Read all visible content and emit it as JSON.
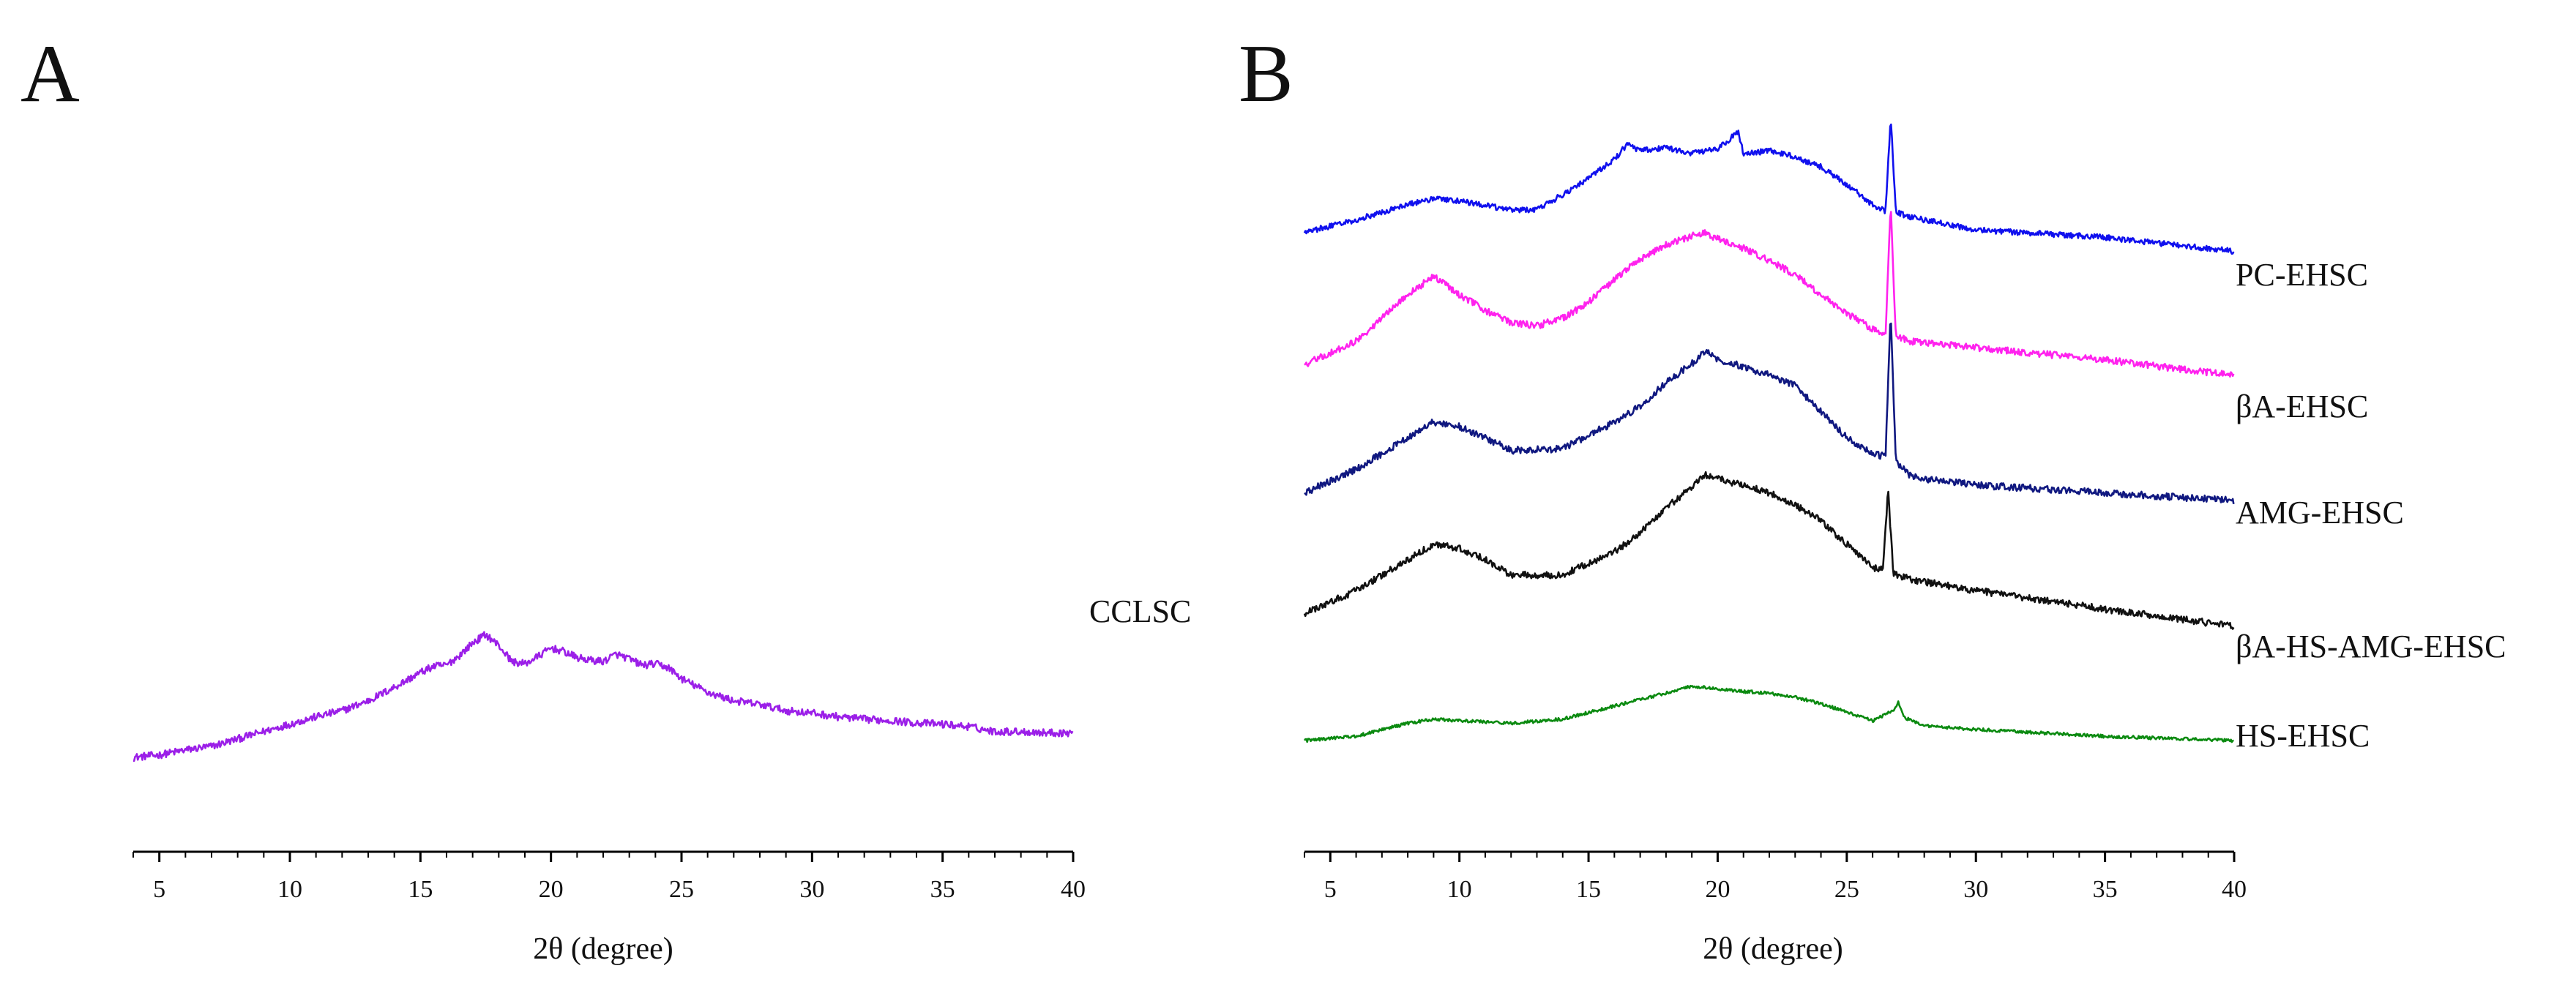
{
  "chart_data": [
    {
      "panel": "A",
      "type": "line",
      "title": "",
      "xlabel": "2θ (degree)",
      "ylabel": "",
      "xlim": [
        4,
        40
      ],
      "xticks": [
        5,
        10,
        15,
        20,
        25,
        30,
        35,
        40
      ],
      "grid": false,
      "yaxis": "hidden (arbitrary intensity)",
      "series": [
        {
          "name": "CCLSC",
          "color": "#9b1fe8",
          "x": [
            4,
            5,
            6,
            7,
            8,
            9,
            10,
            11,
            12,
            13,
            14,
            15,
            15.5,
            16,
            16.5,
            17,
            17.5,
            18,
            18.5,
            19,
            19.5,
            20,
            20.5,
            21,
            21.5,
            22,
            22.5,
            23,
            23.5,
            24,
            24.5,
            25,
            26,
            27,
            28,
            29,
            30,
            31,
            32,
            33,
            34,
            35,
            36,
            37,
            38,
            39,
            40
          ],
          "y": [
            0,
            0.02,
            0.06,
            0.09,
            0.15,
            0.21,
            0.27,
            0.33,
            0.38,
            0.46,
            0.57,
            0.69,
            0.74,
            0.75,
            0.83,
            0.93,
            1.0,
            0.91,
            0.78,
            0.76,
            0.82,
            0.89,
            0.86,
            0.81,
            0.79,
            0.78,
            0.84,
            0.8,
            0.75,
            0.76,
            0.73,
            0.64,
            0.53,
            0.46,
            0.43,
            0.38,
            0.36,
            0.33,
            0.31,
            0.3,
            0.28,
            0.27,
            0.25,
            0.21,
            0.21,
            0.2,
            0.2
          ],
          "noise": 0.03
        }
      ]
    },
    {
      "panel": "B",
      "type": "line",
      "title": "",
      "xlabel": "2θ (degree)",
      "ylabel": "",
      "xlim": [
        4,
        40
      ],
      "xticks": [
        5,
        10,
        15,
        20,
        25,
        30,
        35,
        40
      ],
      "grid": false,
      "yaxis": "hidden (stacked, arbitrary intensity)",
      "series": [
        {
          "name": "PC-EHSC",
          "color": "#1010ee",
          "x": [
            4,
            6,
            8,
            9,
            10,
            12,
            13,
            14,
            15,
            16,
            16.5,
            17,
            18,
            19,
            20,
            20.8,
            21,
            22,
            23,
            24,
            25,
            26,
            26.5,
            26.7,
            26.9,
            27.5,
            30,
            35,
            40
          ],
          "y": [
            0.2,
            0.3,
            0.42,
            0.47,
            0.45,
            0.38,
            0.38,
            0.5,
            0.63,
            0.78,
            0.9,
            0.85,
            0.87,
            0.83,
            0.86,
            1.0,
            0.82,
            0.85,
            0.8,
            0.72,
            0.58,
            0.42,
            0.37,
            1.12,
            0.36,
            0.32,
            0.22,
            0.16,
            0.05
          ],
          "noise": 0.022
        },
        {
          "name": "βA-EHSC",
          "color": "#ff22ee",
          "x": [
            4,
            6,
            8,
            9,
            10,
            11,
            12,
            13,
            14,
            15,
            16,
            17,
            18,
            19,
            19.5,
            20,
            21,
            22,
            23,
            24,
            25,
            26,
            26.5,
            26.7,
            26.9,
            27.5,
            30,
            35,
            40
          ],
          "y": [
            0.15,
            0.3,
            0.6,
            0.72,
            0.6,
            0.5,
            0.42,
            0.4,
            0.45,
            0.55,
            0.7,
            0.83,
            0.92,
            0.98,
            1.0,
            0.96,
            0.9,
            0.82,
            0.73,
            0.6,
            0.48,
            0.38,
            0.33,
            1.18,
            0.33,
            0.3,
            0.26,
            0.18,
            0.08
          ],
          "noise": 0.022
        },
        {
          "name": "AMG-EHSC",
          "color": "#101880",
          "x": [
            4,
            6,
            8,
            9,
            10,
            11,
            12,
            14,
            16,
            17,
            18,
            19,
            19.5,
            20,
            21,
            22,
            23,
            24,
            25,
            26,
            26.5,
            26.7,
            26.9,
            27.5,
            30,
            35,
            40
          ],
          "y": [
            0.1,
            0.25,
            0.45,
            0.55,
            0.52,
            0.45,
            0.37,
            0.38,
            0.55,
            0.65,
            0.8,
            0.92,
            1.0,
            0.95,
            0.9,
            0.85,
            0.78,
            0.62,
            0.45,
            0.35,
            0.33,
            1.25,
            0.3,
            0.2,
            0.15,
            0.1,
            0.05
          ],
          "noise": 0.022
        },
        {
          "name": "βA-HS-AMG-EHSC",
          "color": "#111111",
          "x": [
            4,
            6,
            8,
            9,
            10,
            11,
            12,
            14,
            16,
            17,
            18,
            19,
            19.5,
            20,
            21,
            22,
            23,
            24,
            25,
            26,
            26.4,
            26.6,
            26.8,
            27.5,
            30,
            35,
            40
          ],
          "y": [
            0.1,
            0.25,
            0.45,
            0.55,
            0.52,
            0.45,
            0.35,
            0.35,
            0.5,
            0.62,
            0.78,
            0.92,
            1.0,
            0.97,
            0.93,
            0.88,
            0.8,
            0.7,
            0.55,
            0.4,
            0.38,
            0.9,
            0.36,
            0.32,
            0.25,
            0.13,
            0.02
          ],
          "noise": 0.022
        },
        {
          "name": "HS-EHSC",
          "color": "#0b8a10",
          "x": [
            4,
            6,
            8,
            9,
            10,
            12,
            14,
            16,
            18,
            19,
            20,
            21,
            22,
            23,
            24,
            25,
            26,
            26.8,
            27,
            27.2,
            28,
            30,
            35,
            40
          ],
          "y": [
            0.05,
            0.1,
            0.25,
            0.3,
            0.28,
            0.25,
            0.3,
            0.45,
            0.6,
            0.68,
            0.65,
            0.62,
            0.6,
            0.55,
            0.48,
            0.38,
            0.28,
            0.4,
            0.5,
            0.32,
            0.22,
            0.18,
            0.1,
            0.05
          ],
          "noise": 0.018
        }
      ]
    }
  ]
}
